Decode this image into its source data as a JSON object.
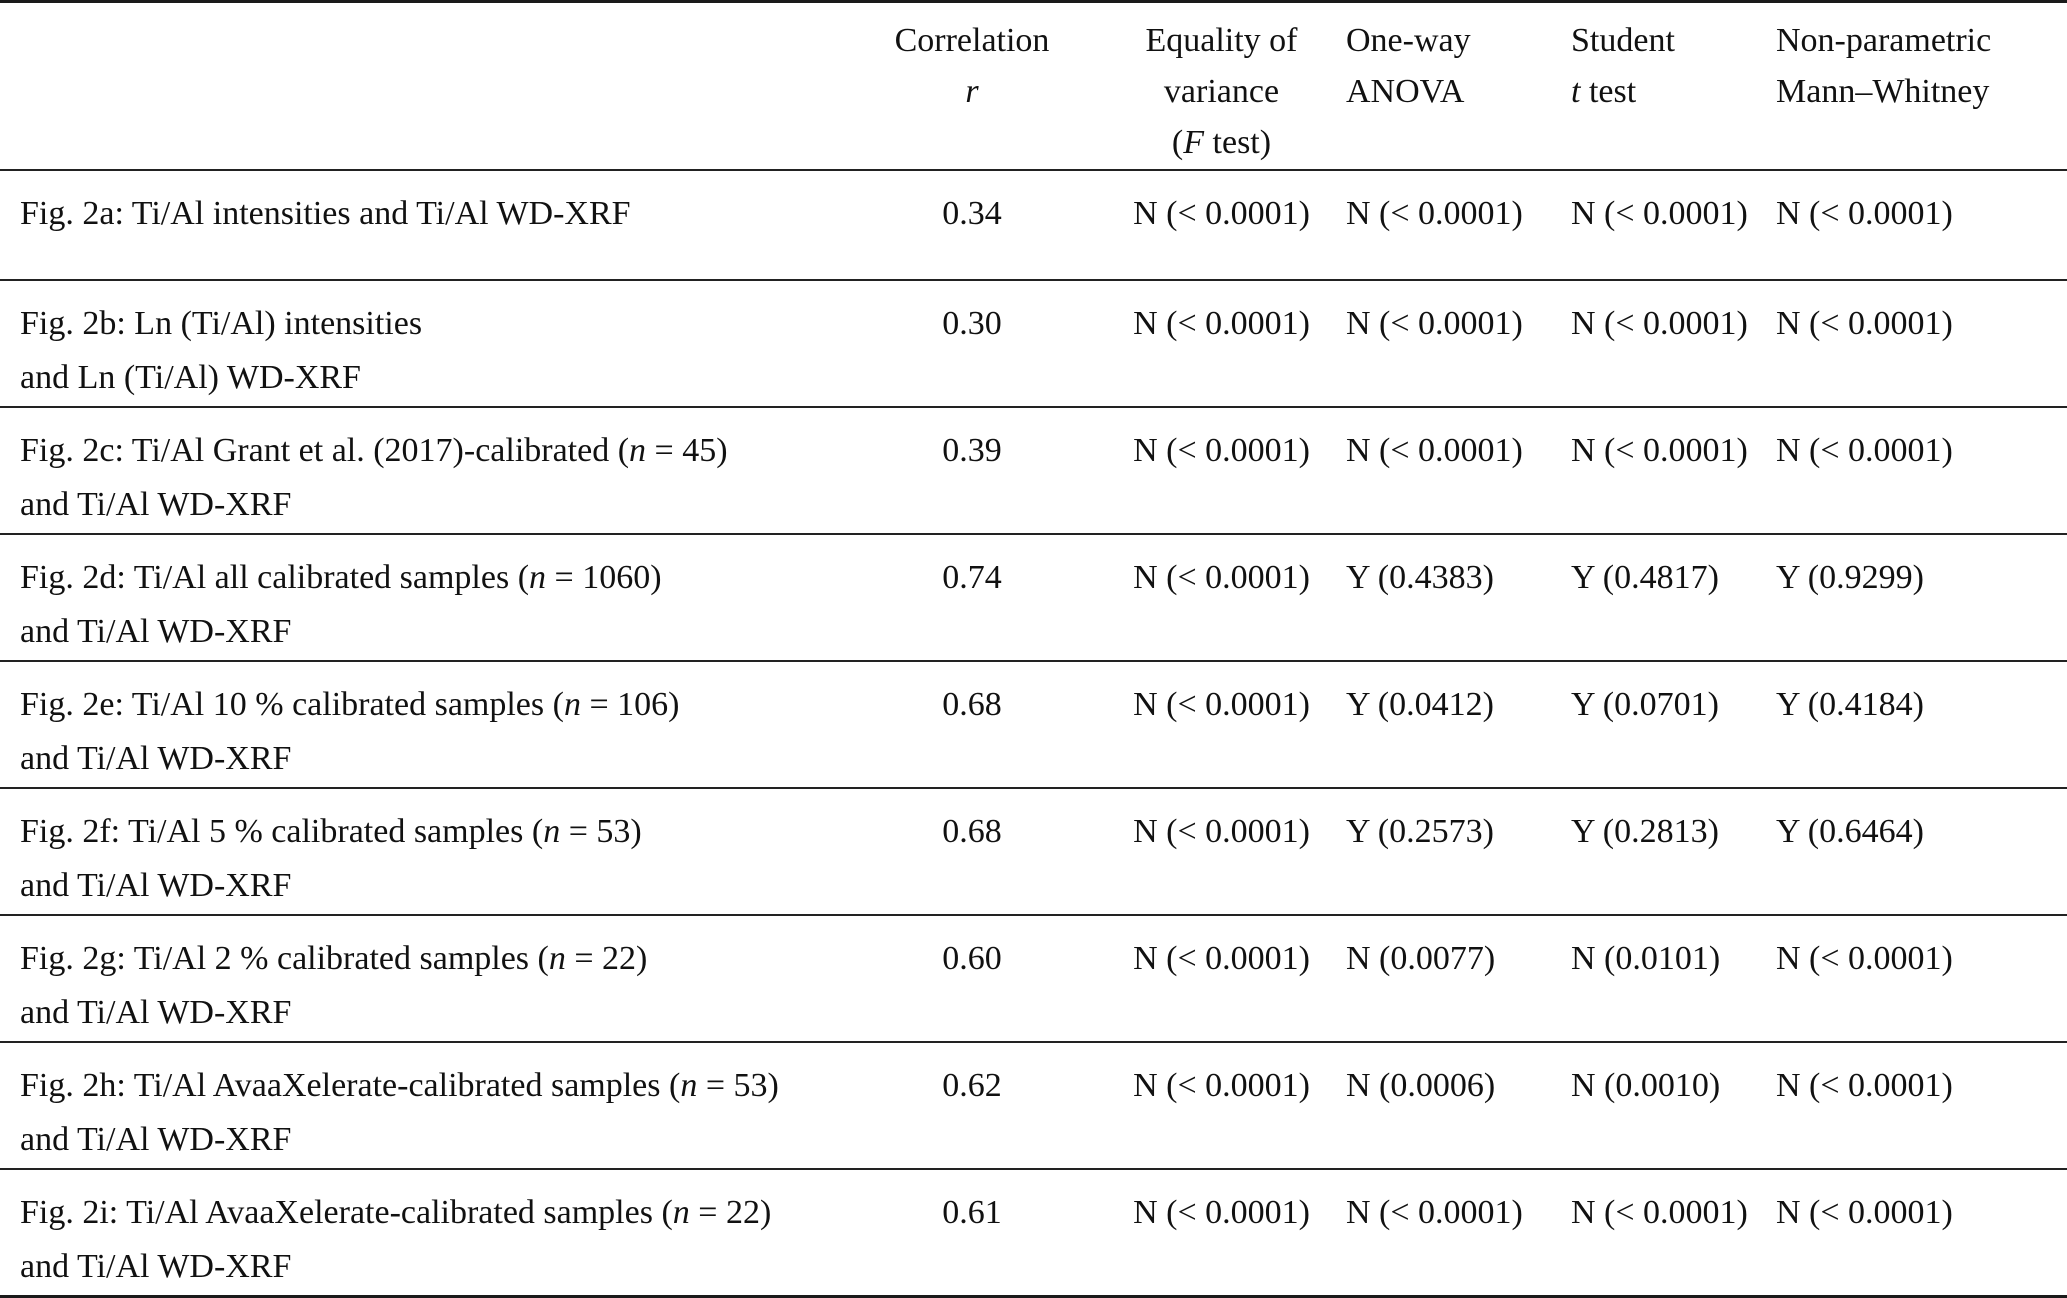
{
  "colors": {
    "text": "#111111",
    "rule": "#1a1a1a",
    "background": "#ffffff"
  },
  "header": {
    "label": "",
    "correlation": {
      "line1": "Correlation",
      "line2": "<i>r</i>"
    },
    "variance": {
      "line1": "Equality of",
      "line2": "variance",
      "line3": "(<i>F</i> test)"
    },
    "anova": {
      "line1": "One-way",
      "line2": "ANOVA"
    },
    "student": {
      "line1": "Student",
      "line2": "<i>t</i> test"
    },
    "mannwhitney": {
      "line1": "Non-parametric",
      "line2": "Mann–Whitney"
    }
  },
  "rows": [
    {
      "label_line1": "Fig. 2a: Ti/Al intensities and Ti/Al WD-XRF",
      "label_line2": "",
      "correlation": "0.34",
      "variance": "N (< 0.0001)",
      "anova": "N (< 0.0001)",
      "student": "N (< 0.0001)",
      "mannwhitney": "N (< 0.0001)"
    },
    {
      "label_line1": "Fig. 2b: Ln (Ti/Al) intensities",
      "label_line2": "and Ln (Ti/Al) WD-XRF",
      "correlation": "0.30",
      "variance": "N (< 0.0001)",
      "anova": "N (< 0.0001)",
      "student": "N (< 0.0001)",
      "mannwhitney": "N (< 0.0001)"
    },
    {
      "label_line1": "Fig. 2c: Ti/Al Grant et al. (2017)-calibrated (<i>n</i> = 45)",
      "label_line2": "and Ti/Al WD-XRF",
      "correlation": "0.39",
      "variance": "N (< 0.0001)",
      "anova": "N (< 0.0001)",
      "student": "N (< 0.0001)",
      "mannwhitney": "N (< 0.0001)"
    },
    {
      "label_line1": "Fig. 2d: Ti/Al all calibrated samples (<i>n</i> = 1060)",
      "label_line2": "and Ti/Al WD-XRF",
      "correlation": "0.74",
      "variance": "N (< 0.0001)",
      "anova": "Y (0.4383)",
      "student": "Y (0.4817)",
      "mannwhitney": "Y (0.9299)"
    },
    {
      "label_line1": "Fig. 2e: Ti/Al 10 % calibrated samples (<i>n</i> = 106)",
      "label_line2": "and Ti/Al WD-XRF",
      "correlation": "0.68",
      "variance": "N (< 0.0001)",
      "anova": "Y (0.0412)",
      "student": "Y (0.0701)",
      "mannwhitney": "Y (0.4184)"
    },
    {
      "label_line1": "Fig. 2f: Ti/Al 5 % calibrated samples (<i>n</i> = 53)",
      "label_line2": "and Ti/Al WD-XRF",
      "correlation": "0.68",
      "variance": "N (< 0.0001)",
      "anova": "Y (0.2573)",
      "student": "Y (0.2813)",
      "mannwhitney": "Y (0.6464)"
    },
    {
      "label_line1": "Fig. 2g: Ti/Al 2 % calibrated samples (<i>n</i> = 22)",
      "label_line2": "and Ti/Al WD-XRF",
      "correlation": "0.60",
      "variance": "N (< 0.0001)",
      "anova": "N (0.0077)",
      "student": "N (0.0101)",
      "mannwhitney": "N (< 0.0001)"
    },
    {
      "label_line1": "Fig. 2h: Ti/Al AvaaXelerate-calibrated samples (<i>n</i> = 53)",
      "label_line2": "and Ti/Al WD-XRF",
      "correlation": "0.62",
      "variance": "N (< 0.0001)",
      "anova": "N (0.0006)",
      "student": "N (0.0010)",
      "mannwhitney": "N (< 0.0001)"
    },
    {
      "label_line1": "Fig. 2i: Ti/Al AvaaXelerate-calibrated samples (<i>n</i> = 22)",
      "label_line2": "and Ti/Al WD-XRF",
      "correlation": "0.61",
      "variance": "N (< 0.0001)",
      "anova": "N (< 0.0001)",
      "student": "N (< 0.0001)",
      "mannwhitney": "N (< 0.0001)"
    }
  ]
}
